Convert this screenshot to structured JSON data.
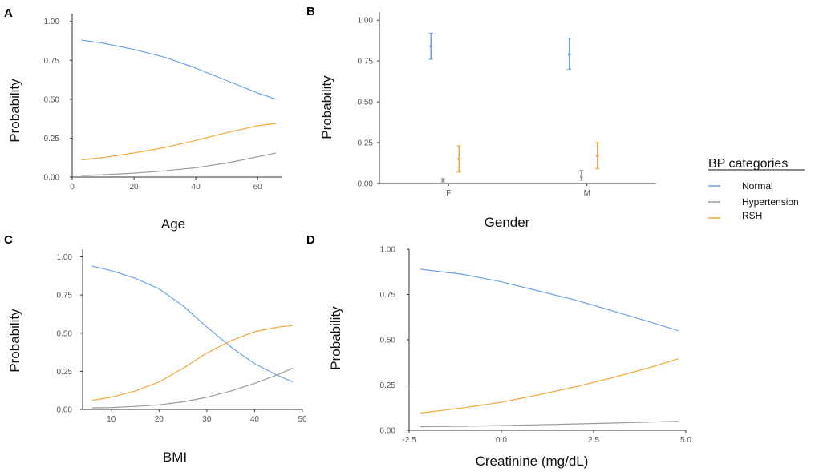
{
  "legend": {
    "title": "BP categories",
    "entries": [
      {
        "name": "Normal",
        "color": "#6fa1e8"
      },
      {
        "name": "Hypertension",
        "color": "#9a9a9a"
      },
      {
        "name": "RSH",
        "color": "#f2a93b"
      }
    ]
  },
  "chart_data": [
    {
      "panel": "A",
      "type": "line",
      "xlabel": "Age",
      "ylabel": "Probability",
      "xlim": [
        0,
        68
      ],
      "ylim": [
        0,
        1.05
      ],
      "xticks": [
        0,
        20,
        40,
        60
      ],
      "yticks": [
        0.0,
        0.25,
        0.5,
        0.75,
        1.0
      ],
      "ytick_labels": [
        "0.00",
        "0.25",
        "0.50",
        "0.75",
        "1.00"
      ],
      "x": [
        3,
        10,
        20,
        30,
        40,
        50,
        60,
        66
      ],
      "series": [
        {
          "name": "Normal",
          "values": [
            0.88,
            0.86,
            0.82,
            0.77,
            0.7,
            0.62,
            0.54,
            0.5
          ]
        },
        {
          "name": "Hypertension",
          "values": [
            0.01,
            0.015,
            0.025,
            0.04,
            0.06,
            0.09,
            0.13,
            0.155
          ]
        },
        {
          "name": "RSH",
          "values": [
            0.11,
            0.125,
            0.155,
            0.19,
            0.235,
            0.285,
            0.33,
            0.345
          ]
        }
      ]
    },
    {
      "panel": "B",
      "type": "errorbar",
      "xlabel": "Gender",
      "ylabel": "Probability",
      "ylim": [
        0,
        1.05
      ],
      "categories": [
        "F",
        "M"
      ],
      "yticks": [
        0.0,
        0.25,
        0.5,
        0.75,
        1.0
      ],
      "ytick_labels": [
        "0.00",
        "0.25",
        "0.50",
        "0.75",
        "1.00"
      ],
      "series": [
        {
          "name": "Normal",
          "values": [
            0.84,
            0.79
          ],
          "lower": [
            0.76,
            0.7
          ],
          "upper": [
            0.92,
            0.89
          ]
        },
        {
          "name": "Hypertension",
          "values": [
            0.02,
            0.04
          ],
          "lower": [
            0.01,
            0.02
          ],
          "upper": [
            0.03,
            0.08
          ]
        },
        {
          "name": "RSH",
          "values": [
            0.15,
            0.17
          ],
          "lower": [
            0.07,
            0.09
          ],
          "upper": [
            0.23,
            0.25
          ]
        }
      ]
    },
    {
      "panel": "C",
      "type": "line",
      "xlabel": "BMI",
      "ylabel": "Probability",
      "xlim": [
        4,
        50
      ],
      "ylim": [
        0,
        1.05
      ],
      "xticks": [
        10,
        20,
        30,
        40,
        50
      ],
      "yticks": [
        0.0,
        0.25,
        0.5,
        0.75,
        1.0
      ],
      "ytick_labels": [
        "0.00",
        "0.25",
        "0.50",
        "0.75",
        "1.00"
      ],
      "x": [
        6,
        10,
        15,
        20,
        25,
        30,
        35,
        40,
        45,
        48
      ],
      "series": [
        {
          "name": "Normal",
          "values": [
            0.94,
            0.91,
            0.86,
            0.79,
            0.68,
            0.54,
            0.41,
            0.3,
            0.22,
            0.18
          ]
        },
        {
          "name": "Hypertension",
          "values": [
            0.01,
            0.012,
            0.02,
            0.03,
            0.05,
            0.08,
            0.12,
            0.17,
            0.23,
            0.27
          ]
        },
        {
          "name": "RSH",
          "values": [
            0.06,
            0.08,
            0.12,
            0.18,
            0.27,
            0.37,
            0.45,
            0.51,
            0.54,
            0.55
          ]
        }
      ]
    },
    {
      "panel": "D",
      "type": "line",
      "xlabel": "Creatinine (mg/dL)",
      "ylabel": "Probability",
      "xlim": [
        -2.5,
        5.0
      ],
      "ylim": [
        0,
        1.0
      ],
      "xticks": [
        -2.5,
        0.0,
        2.5,
        5.0
      ],
      "xtick_labels": [
        "-2.5",
        "0.0",
        "2.5",
        "5.0"
      ],
      "yticks": [
        0.0,
        0.25,
        0.5,
        0.75,
        1.0
      ],
      "ytick_labels": [
        "0.00",
        "0.25",
        "0.50",
        "0.75",
        "1.00"
      ],
      "x": [
        -2.2,
        -1,
        0,
        1,
        2,
        3,
        4,
        4.8
      ],
      "series": [
        {
          "name": "Normal",
          "values": [
            0.89,
            0.86,
            0.82,
            0.77,
            0.72,
            0.66,
            0.6,
            0.55
          ]
        },
        {
          "name": "Hypertension",
          "values": [
            0.02,
            0.022,
            0.026,
            0.03,
            0.035,
            0.04,
            0.045,
            0.05
          ]
        },
        {
          "name": "RSH",
          "values": [
            0.095,
            0.125,
            0.155,
            0.195,
            0.24,
            0.29,
            0.345,
            0.395
          ]
        }
      ]
    }
  ]
}
